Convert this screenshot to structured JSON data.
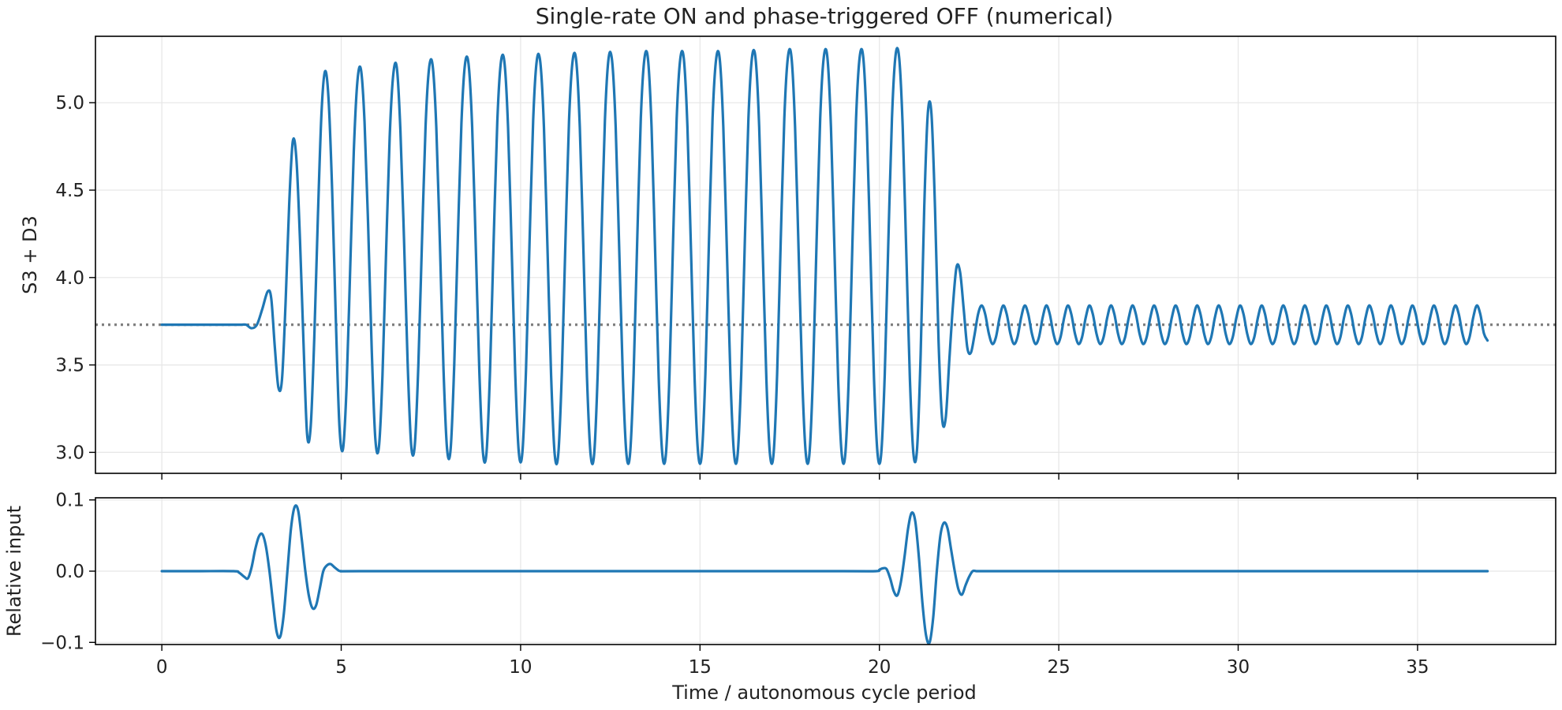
{
  "chart_data": [
    {
      "type": "line",
      "title": "Single-rate ON and phase-triggered OFF (numerical)",
      "xlabel": "",
      "ylabel": "S3 + D3",
      "xlim": [
        -1.85,
        38.85
      ],
      "ylim": [
        2.88,
        5.38
      ],
      "grid": true,
      "xticks": [
        0,
        5,
        10,
        15,
        20,
        25,
        30,
        35
      ],
      "xtick_labels": [],
      "yticks": [
        3.0,
        3.5,
        4.0,
        4.5,
        5.0
      ],
      "ytick_labels": [
        "3.0",
        "3.5",
        "4.0",
        "4.5",
        "5.0"
      ],
      "colors": {
        "line": "#1f77b4",
        "reference": "#808080"
      },
      "reference_line": {
        "y": 3.73,
        "style": "dotted"
      },
      "series": [
        {
          "x": [
            0,
            0.5,
            1,
            1.5,
            2,
            2.2,
            2.35,
            2.5,
            2.65,
            2.8,
            2.95,
            3.05,
            3.15,
            3.25,
            3.35,
            3.45,
            3.55,
            3.65,
            3.75,
            3.85,
            3.95,
            4.05,
            4.15,
            4.25,
            4.35,
            4.45,
            4.55,
            4.65,
            4.75,
            4.85,
            4.95,
            5.05,
            5.15,
            5.25,
            5.35,
            5.45,
            5.55,
            5.65,
            5.75,
            5.85,
            5.95,
            6.05,
            6.15,
            6.25,
            6.35,
            6.45,
            6.55,
            6.65,
            6.75,
            6.85,
            6.95,
            7.05,
            7.15,
            7.25,
            7.35,
            7.45,
            7.55,
            7.65,
            7.75,
            7.85,
            7.95,
            8.05,
            8.15,
            8.25,
            8.35,
            8.45,
            8.55,
            8.65,
            8.75,
            8.85,
            8.95,
            9.05,
            9.15,
            9.25,
            9.35,
            9.45,
            9.55,
            9.65,
            9.75,
            9.85,
            9.95,
            10.05,
            10.15,
            10.25,
            10.35,
            10.45,
            10.55,
            10.65,
            10.75,
            10.85,
            10.95,
            11.05,
            11.15,
            11.25,
            11.35,
            11.45,
            11.55,
            11.65,
            11.75,
            11.85,
            11.95,
            12.05,
            12.15,
            12.25,
            12.35,
            12.45,
            12.55,
            12.65,
            12.75,
            12.85,
            12.95,
            13.05,
            13.15,
            13.25,
            13.35,
            13.45,
            13.55,
            13.65,
            13.75,
            13.85,
            13.95,
            14.05,
            14.15,
            14.25,
            14.35,
            14.45,
            14.55,
            14.65,
            14.75,
            14.85,
            14.95,
            15.05,
            15.15,
            15.25,
            15.35,
            15.45,
            15.55,
            15.65,
            15.75,
            15.85,
            15.95,
            16.05,
            16.15,
            16.25,
            16.35,
            16.45,
            16.55,
            16.65,
            16.75,
            16.85,
            16.95,
            17.05,
            17.15,
            17.25,
            17.35,
            17.45,
            17.55,
            17.65,
            17.75,
            17.85,
            17.95,
            18.05,
            18.15,
            18.25,
            18.35,
            18.45,
            18.55,
            18.65,
            18.75,
            18.85,
            18.95,
            19.05,
            19.15,
            19.25,
            19.35,
            19.45,
            19.55,
            19.65,
            19.75,
            19.85,
            19.95,
            20.05,
            20.15,
            20.25,
            20.35,
            20.45,
            20.55,
            20.65,
            20.75,
            20.85,
            20.95,
            21.05,
            21.15,
            21.25,
            21.35,
            21.45,
            21.55,
            21.65,
            21.75,
            21.85,
            21.95,
            22.05,
            22.15,
            22.25,
            22.35,
            22.45,
            22.55,
            22.65,
            22.75,
            22.85,
            22.95,
            23.05,
            23.15,
            23.25,
            23.35,
            23.45,
            23.55,
            23.65,
            23.75,
            23.85,
            23.95,
            24.05,
            24.15,
            24.25,
            24.35,
            24.45,
            24.55,
            24.65,
            24.75,
            24.85,
            24.95,
            25.05,
            25.15,
            25.25,
            25.35,
            25.45,
            25.55,
            25.65,
            25.75,
            25.85,
            25.95,
            26.05,
            26.15,
            26.25,
            26.35,
            26.45,
            26.55,
            26.65,
            26.75,
            26.85,
            26.95,
            27.05,
            27.15,
            27.25,
            27.35,
            27.45,
            27.55,
            27.65,
            27.75,
            27.85,
            27.95,
            28.05,
            28.15,
            28.25,
            28.35,
            28.45,
            28.55,
            28.65,
            28.75,
            28.85,
            28.95,
            29.05,
            29.15,
            29.25,
            29.35,
            29.45,
            29.55,
            29.65,
            29.75,
            29.85,
            29.95,
            30.05,
            30.15,
            30.25,
            30.35,
            30.45,
            30.55,
            30.65,
            30.75,
            30.85,
            30.95,
            31.05,
            31.15,
            31.25,
            31.35,
            31.45,
            31.55,
            31.65,
            31.75,
            31.85,
            31.95,
            32.05,
            32.15,
            32.25,
            32.35,
            32.45,
            32.55,
            32.65,
            32.75,
            32.85,
            32.95,
            33.05,
            33.15,
            33.25,
            33.35,
            33.45,
            33.55,
            33.65,
            33.75,
            33.85,
            33.95,
            34.05,
            34.15,
            34.25,
            34.35,
            34.45,
            34.55,
            34.65,
            34.75,
            34.85,
            34.95,
            35.05,
            35.15,
            35.25,
            35.35,
            35.45,
            35.55,
            35.65,
            35.75,
            35.85,
            35.95,
            36.05,
            36.15,
            36.25,
            36.35,
            36.45,
            36.55,
            36.65,
            36.75,
            36.85,
            36.95
          ],
          "y": [
            3.73,
            3.73,
            3.73,
            3.73,
            3.73,
            3.73,
            3.73,
            3.71,
            3.73,
            3.82,
            3.92,
            3.88,
            3.6,
            3.37,
            3.42,
            3.86,
            4.42,
            4.78,
            4.68,
            4.22,
            3.62,
            3.1,
            3.15,
            3.66,
            4.35,
            4.94,
            5.18,
            5.01,
            4.48,
            3.76,
            3.15,
            3.02,
            3.38,
            4.05,
            4.72,
            5.12,
            5.19,
            4.89,
            4.3,
            3.59,
            3.08,
            3.03,
            3.44,
            4.14,
            4.8,
            5.16,
            5.2,
            4.84,
            4.22,
            3.52,
            3.04,
            3.04,
            3.5,
            4.2,
            4.86,
            5.2,
            5.21,
            4.86,
            4.2,
            3.48,
            3.02,
            3.02,
            3.5,
            4.22,
            4.88,
            5.22,
            5.22,
            4.86,
            4.18,
            3.46,
            3.0,
            3.0,
            3.48,
            4.22,
            4.89,
            5.23,
            5.23,
            4.86,
            4.17,
            3.45,
            3.0,
            3.0,
            3.47,
            4.21,
            4.9,
            5.24,
            5.23,
            4.86,
            4.16,
            3.44,
            2.99,
            2.99,
            3.46,
            4.21,
            4.9,
            5.24,
            5.24,
            4.86,
            4.16,
            3.43,
            2.99,
            2.99,
            3.46,
            4.21,
            4.9,
            5.25,
            5.24,
            4.86,
            4.15,
            3.43,
            2.99,
            2.99,
            3.45,
            4.21,
            4.91,
            5.25,
            5.25,
            4.86,
            4.15,
            3.42,
            2.99,
            2.99,
            3.45,
            4.21,
            4.91,
            5.25,
            5.25,
            4.86,
            4.15,
            3.42,
            2.99,
            2.99,
            3.45,
            4.21,
            4.91,
            5.25,
            5.25,
            4.86,
            4.15,
            3.42,
            2.99,
            2.99,
            3.45,
            4.21,
            4.91,
            5.26,
            5.25,
            4.86,
            4.14,
            3.42,
            2.99,
            2.99,
            3.45,
            4.21,
            4.91,
            5.26,
            5.26,
            4.86,
            4.14,
            3.42,
            2.99,
            2.99,
            3.45,
            4.21,
            4.91,
            5.26,
            5.26,
            4.86,
            4.14,
            3.42,
            2.99,
            2.99,
            3.45,
            4.21,
            4.91,
            5.26,
            5.26,
            4.86,
            4.14,
            3.42,
            2.99,
            2.99,
            3.45,
            4.21,
            4.91,
            5.27,
            5.26,
            4.86,
            4.14,
            3.42,
            2.99,
            3.02,
            3.56,
            4.4,
            4.94,
            4.94,
            4.4,
            3.63,
            3.19,
            3.2,
            3.53,
            3.84,
            4.06,
            4.03,
            3.82,
            3.6,
            3.57,
            3.67,
            3.79,
            3.84,
            3.79,
            3.68,
            3.62,
            3.66,
            3.77,
            3.84,
            3.79,
            3.68,
            3.62,
            3.66,
            3.77,
            3.84,
            3.79,
            3.68,
            3.62,
            3.66,
            3.77,
            3.84,
            3.79,
            3.68,
            3.62,
            3.66,
            3.77,
            3.84,
            3.79,
            3.68,
            3.62,
            3.66,
            3.77,
            3.84,
            3.79,
            3.68,
            3.62,
            3.66,
            3.77,
            3.84,
            3.79,
            3.68,
            3.62,
            3.66,
            3.77,
            3.84,
            3.79,
            3.68,
            3.62,
            3.66,
            3.77,
            3.84,
            3.79,
            3.68,
            3.62,
            3.66,
            3.77,
            3.84,
            3.79,
            3.68,
            3.62,
            3.66,
            3.77,
            3.84,
            3.79,
            3.68,
            3.62,
            3.66,
            3.77,
            3.84,
            3.79,
            3.68,
            3.62,
            3.66,
            3.77,
            3.84,
            3.79,
            3.68,
            3.62,
            3.66,
            3.77,
            3.84,
            3.79,
            3.68,
            3.62,
            3.66,
            3.77,
            3.84,
            3.79,
            3.68,
            3.62,
            3.66,
            3.77,
            3.84,
            3.79,
            3.68,
            3.62,
            3.66,
            3.77,
            3.84,
            3.79,
            3.68,
            3.62,
            3.66,
            3.77,
            3.84,
            3.79,
            3.68,
            3.62,
            3.66,
            3.77,
            3.84,
            3.79,
            3.68,
            3.62,
            3.66,
            3.77,
            3.84,
            3.79,
            3.68,
            3.62,
            3.66,
            3.77,
            3.84,
            3.79,
            3.68,
            3.62,
            3.66,
            3.77,
            3.84,
            3.79,
            3.68,
            3.62,
            3.66,
            3.77,
            3.84,
            3.79,
            3.68,
            3.62,
            3.66,
            3.77,
            3.84,
            3.79,
            3.68,
            3.64
          ]
        }
      ]
    },
    {
      "type": "line",
      "title": "",
      "xlabel": "Time / autonomous cycle period",
      "ylabel": "Relative input",
      "xlim": [
        -1.85,
        38.85
      ],
      "ylim": [
        -0.103,
        0.103
      ],
      "grid": true,
      "xticks": [
        0,
        5,
        10,
        15,
        20,
        25,
        30,
        35
      ],
      "xtick_labels": [
        "0",
        "5",
        "10",
        "15",
        "20",
        "25",
        "30",
        "35"
      ],
      "yticks": [
        -0.1,
        0.0,
        0.1
      ],
      "ytick_labels": [
        "−0.1",
        "0.0",
        "0.1"
      ],
      "colors": {
        "line": "#1f77b4"
      },
      "series": [
        {
          "x": [
            0,
            1,
            2,
            2.15,
            2.3,
            2.4,
            2.5,
            2.6,
            2.7,
            2.8,
            2.9,
            3.0,
            3.1,
            3.2,
            3.3,
            3.4,
            3.5,
            3.6,
            3.7,
            3.8,
            3.9,
            4.0,
            4.1,
            4.2,
            4.3,
            4.4,
            4.5,
            4.6,
            4.7,
            4.8,
            4.9,
            5.0,
            5.5,
            10,
            15,
            19,
            19.9,
            20.0,
            20.1,
            20.2,
            20.3,
            20.4,
            20.5,
            20.6,
            20.7,
            20.8,
            20.9,
            21.0,
            21.1,
            21.2,
            21.3,
            21.4,
            21.5,
            21.6,
            21.7,
            21.8,
            21.9,
            22.0,
            22.1,
            22.2,
            22.3,
            22.4,
            22.5,
            22.6,
            22.7,
            22.8,
            23,
            25,
            30,
            35,
            36.95
          ],
          "y": [
            0,
            0,
            0,
            -0.002,
            -0.008,
            -0.01,
            0.005,
            0.03,
            0.048,
            0.052,
            0.035,
            0.0,
            -0.045,
            -0.085,
            -0.092,
            -0.06,
            0.0,
            0.06,
            0.09,
            0.085,
            0.045,
            0.0,
            -0.035,
            -0.052,
            -0.048,
            -0.025,
            0.0,
            0.008,
            0.01,
            0.006,
            0.002,
            0,
            0,
            0,
            0,
            0,
            0,
            0.002,
            0.004,
            0.003,
            -0.01,
            -0.028,
            -0.034,
            -0.015,
            0.02,
            0.06,
            0.082,
            0.07,
            0.02,
            -0.045,
            -0.09,
            -0.1,
            -0.065,
            0.0,
            0.05,
            0.068,
            0.06,
            0.03,
            0.0,
            -0.025,
            -0.033,
            -0.02,
            -0.008,
            0,
            0,
            0,
            0,
            0,
            0,
            0,
            0
          ]
        }
      ]
    }
  ]
}
